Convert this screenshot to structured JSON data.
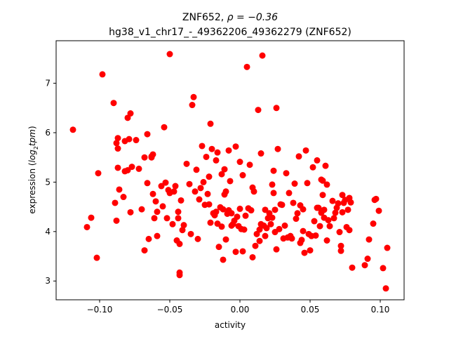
{
  "chart_data": {
    "type": "scatter",
    "title_line1_prefix": "ZNF652, ",
    "title_line1_rho": "ρ = −0.36",
    "title_line2": "hg38_v1_chr17_-_49362206_49362279 (ZNF652)",
    "xlabel": "activity",
    "ylabel_prefix": "expression (",
    "ylabel_math": "log",
    "ylabel_sub": "2",
    "ylabel_math2": "tpm",
    "ylabel_suffix": ")",
    "xlim": [
      -0.131,
      0.117
    ],
    "ylim": [
      2.62,
      7.86
    ],
    "xticks": [
      -0.1,
      -0.05,
      0.0,
      0.05,
      0.1
    ],
    "xtick_labels": [
      "−0.10",
      "−0.05",
      "0.00",
      "0.05",
      "0.10"
    ],
    "yticks": [
      3,
      4,
      5,
      6,
      7
    ],
    "ytick_labels": [
      "3",
      "4",
      "5",
      "6",
      "7"
    ],
    "grid": false,
    "marker_color": "#ff0000",
    "points": [
      [
        -0.119,
        6.06
      ],
      [
        -0.109,
        4.09
      ],
      [
        -0.106,
        4.28
      ],
      [
        -0.102,
        3.47
      ],
      [
        -0.101,
        5.18
      ],
      [
        -0.098,
        7.18
      ],
      [
        -0.09,
        6.6
      ],
      [
        -0.089,
        4.58
      ],
      [
        -0.088,
        5.79
      ],
      [
        -0.088,
        4.22
      ],
      [
        -0.087,
        5.68
      ],
      [
        -0.087,
        5.89
      ],
      [
        -0.087,
        5.29
      ],
      [
        -0.086,
        4.85
      ],
      [
        -0.083,
        4.7
      ],
      [
        -0.082,
        5.83
      ],
      [
        -0.082,
        5.22
      ],
      [
        -0.08,
        6.3
      ],
      [
        -0.08,
        5.24
      ],
      [
        -0.079,
        5.87
      ],
      [
        -0.078,
        6.39
      ],
      [
        -0.078,
        4.39
      ],
      [
        -0.077,
        5.31
      ],
      [
        -0.074,
        5.85
      ],
      [
        -0.072,
        5.27
      ],
      [
        -0.07,
        4.45
      ],
      [
        -0.068,
        3.62
      ],
      [
        -0.068,
        5.5
      ],
      [
        -0.066,
        4.98
      ],
      [
        -0.066,
        5.97
      ],
      [
        -0.065,
        3.85
      ],
      [
        -0.063,
        5.5
      ],
      [
        -0.063,
        5.52
      ],
      [
        -0.062,
        5.56
      ],
      [
        -0.062,
        4.76
      ],
      [
        -0.061,
        4.27
      ],
      [
        -0.06,
        4.61
      ],
      [
        -0.059,
        3.91
      ],
      [
        -0.059,
        4.4
      ],
      [
        -0.056,
        4.92
      ],
      [
        -0.055,
        4.51
      ],
      [
        -0.054,
        6.11
      ],
      [
        -0.053,
        4.99
      ],
      [
        -0.052,
        4.27
      ],
      [
        -0.051,
        4.84
      ],
      [
        -0.05,
        7.59
      ],
      [
        -0.05,
        4.78
      ],
      [
        -0.048,
        4.15
      ],
      [
        -0.047,
        4.81
      ],
      [
        -0.046,
        4.92
      ],
      [
        -0.045,
        3.82
      ],
      [
        -0.044,
        4.4
      ],
      [
        -0.044,
        4.27
      ],
      [
        -0.043,
        3.12
      ],
      [
        -0.043,
        3.17
      ],
      [
        -0.043,
        3.75
      ],
      [
        -0.042,
        4.63
      ],
      [
        -0.041,
        4.03
      ],
      [
        -0.04,
        4.13
      ],
      [
        -0.038,
        5.37
      ],
      [
        -0.036,
        4.96
      ],
      [
        -0.035,
        3.95
      ],
      [
        -0.034,
        6.56
      ],
      [
        -0.033,
        6.72
      ],
      [
        -0.032,
        4.81
      ],
      [
        -0.031,
        5.25
      ],
      [
        -0.03,
        3.85
      ],
      [
        -0.029,
        4.65
      ],
      [
        -0.028,
        4.88
      ],
      [
        -0.027,
        5.73
      ],
      [
        -0.026,
        5.0
      ],
      [
        -0.025,
        4.54
      ],
      [
        -0.024,
        5.51
      ],
      [
        -0.023,
        4.76
      ],
      [
        -0.022,
        4.55
      ],
      [
        -0.022,
        5.11
      ],
      [
        -0.021,
        6.18
      ],
      [
        -0.021,
        4.18
      ],
      [
        -0.02,
        5.67
      ],
      [
        -0.019,
        4.37
      ],
      [
        -0.018,
        4.33
      ],
      [
        -0.017,
        5.44
      ],
      [
        -0.017,
        4.4
      ],
      [
        -0.016,
        4.16
      ],
      [
        -0.016,
        5.6
      ],
      [
        -0.015,
        3.69
      ],
      [
        -0.014,
        4.49
      ],
      [
        -0.013,
        4.1
      ],
      [
        -0.013,
        5.16
      ],
      [
        -0.012,
        3.43
      ],
      [
        -0.012,
        4.45
      ],
      [
        -0.011,
        5.26
      ],
      [
        -0.011,
        4.75
      ],
      [
        -0.01,
        4.81
      ],
      [
        -0.01,
        3.84
      ],
      [
        -0.009,
        4.36
      ],
      [
        -0.008,
        5.64
      ],
      [
        -0.008,
        4.43
      ],
      [
        -0.007,
        5.02
      ],
      [
        -0.006,
        4.12
      ],
      [
        -0.006,
        4.37
      ],
      [
        -0.005,
        4.15
      ],
      [
        -0.004,
        4.22
      ],
      [
        -0.003,
        5.72
      ],
      [
        -0.003,
        3.59
      ],
      [
        -0.002,
        4.3
      ],
      [
        -0.001,
        4.11
      ],
      [
        0.0,
        4.46
      ],
      [
        0.0,
        5.41
      ],
      [
        0.001,
        4.05
      ],
      [
        0.002,
        5.14
      ],
      [
        0.002,
        3.6
      ],
      [
        0.003,
        4.04
      ],
      [
        0.004,
        4.32
      ],
      [
        0.005,
        7.33
      ],
      [
        0.006,
        4.47
      ],
      [
        0.007,
        5.35
      ],
      [
        0.008,
        4.43
      ],
      [
        0.009,
        4.89
      ],
      [
        0.009,
        3.48
      ],
      [
        0.01,
        4.81
      ],
      [
        0.011,
        3.71
      ],
      [
        0.012,
        3.95
      ],
      [
        0.013,
        6.46
      ],
      [
        0.014,
        3.81
      ],
      [
        0.014,
        4.04
      ],
      [
        0.015,
        5.58
      ],
      [
        0.015,
        4.15
      ],
      [
        0.016,
        7.56
      ],
      [
        0.017,
        4.12
      ],
      [
        0.018,
        3.91
      ],
      [
        0.018,
        4.44
      ],
      [
        0.019,
        4.07
      ],
      [
        0.02,
        4.27
      ],
      [
        0.021,
        4.37
      ],
      [
        0.022,
        4.15
      ],
      [
        0.023,
        4.95
      ],
      [
        0.023,
        4.28
      ],
      [
        0.024,
        5.23
      ],
      [
        0.024,
        4.78
      ],
      [
        0.025,
        3.99
      ],
      [
        0.025,
        4.44
      ],
      [
        0.026,
        3.64
      ],
      [
        0.026,
        6.5
      ],
      [
        0.027,
        5.67
      ],
      [
        0.028,
        4.05
      ],
      [
        0.029,
        4.55
      ],
      [
        0.03,
        4.54
      ],
      [
        0.031,
        3.86
      ],
      [
        0.032,
        4.12
      ],
      [
        0.033,
        5.18
      ],
      [
        0.034,
        3.88
      ],
      [
        0.035,
        4.78
      ],
      [
        0.036,
        3.91
      ],
      [
        0.037,
        3.86
      ],
      [
        0.038,
        4.58
      ],
      [
        0.039,
        4.97
      ],
      [
        0.04,
        4.26
      ],
      [
        0.041,
        4.37
      ],
      [
        0.042,
        5.52
      ],
      [
        0.043,
        4.53
      ],
      [
        0.043,
        3.77
      ],
      [
        0.044,
        3.83
      ],
      [
        0.045,
        4.01
      ],
      [
        0.045,
        4.45
      ],
      [
        0.046,
        3.57
      ],
      [
        0.047,
        5.64
      ],
      [
        0.048,
        4.98
      ],
      [
        0.049,
        3.95
      ],
      [
        0.05,
        3.62
      ],
      [
        0.051,
        3.91
      ],
      [
        0.052,
        5.3
      ],
      [
        0.053,
        4.21
      ],
      [
        0.054,
        3.92
      ],
      [
        0.055,
        5.44
      ],
      [
        0.055,
        4.48
      ],
      [
        0.056,
        4.48
      ],
      [
        0.057,
        4.11
      ],
      [
        0.058,
        5.05
      ],
      [
        0.058,
        4.38
      ],
      [
        0.059,
        4.74
      ],
      [
        0.059,
        5.03
      ],
      [
        0.06,
        4.28
      ],
      [
        0.06,
        4.44
      ],
      [
        0.061,
        5.33
      ],
      [
        0.062,
        3.82
      ],
      [
        0.062,
        4.95
      ],
      [
        0.063,
        4.23
      ],
      [
        0.064,
        4.11
      ],
      [
        0.066,
        4.62
      ],
      [
        0.067,
        4.27
      ],
      [
        0.068,
        4.38
      ],
      [
        0.069,
        4.48
      ],
      [
        0.07,
        4.57
      ],
      [
        0.071,
        3.99
      ],
      [
        0.072,
        3.71
      ],
      [
        0.072,
        3.61
      ],
      [
        0.073,
        4.74
      ],
      [
        0.073,
        4.39
      ],
      [
        0.074,
        4.58
      ],
      [
        0.075,
        4.64
      ],
      [
        0.076,
        4.09
      ],
      [
        0.077,
        4.44
      ],
      [
        0.078,
        4.68
      ],
      [
        0.078,
        4.03
      ],
      [
        0.079,
        4.59
      ],
      [
        0.08,
        3.27
      ],
      [
        0.089,
        3.32
      ],
      [
        0.091,
        3.45
      ],
      [
        0.092,
        3.84
      ],
      [
        0.095,
        4.16
      ],
      [
        0.096,
        4.64
      ],
      [
        0.097,
        4.66
      ],
      [
        0.099,
        4.42
      ],
      [
        0.102,
        3.26
      ],
      [
        0.104,
        2.85
      ],
      [
        0.105,
        3.67
      ]
    ]
  }
}
